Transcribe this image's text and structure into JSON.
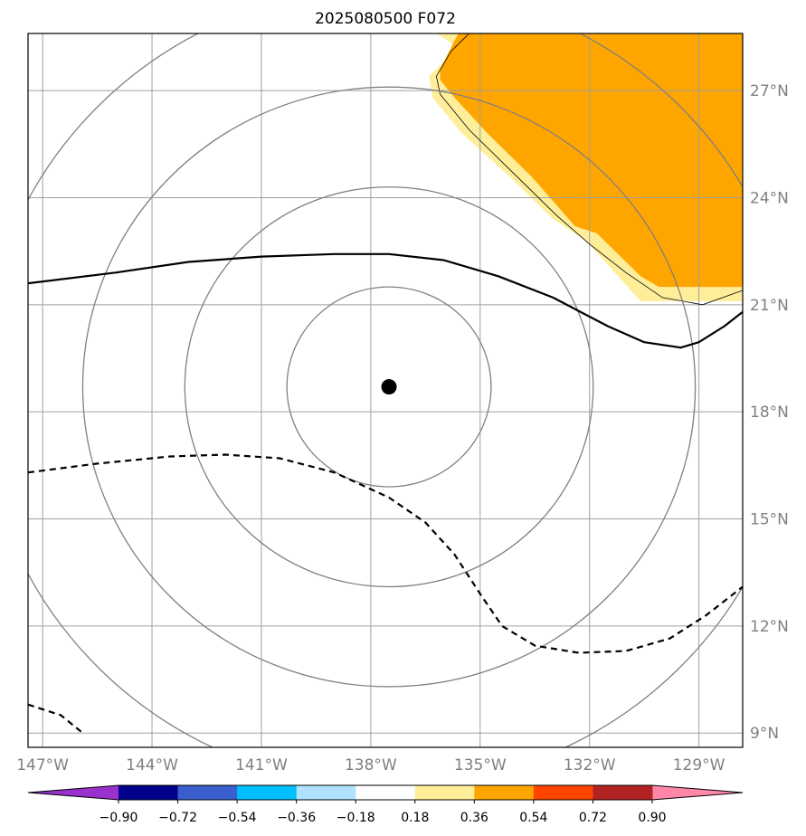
{
  "title": "2025080500 F072",
  "map": {
    "lon_range": [
      -147.4,
      -127.8
    ],
    "lat_range": [
      8.6,
      28.6
    ],
    "lat_ticks": [
      {
        "value": 27,
        "label": "27°N"
      },
      {
        "value": 24,
        "label": "24°N"
      },
      {
        "value": 21,
        "label": "21°N"
      },
      {
        "value": 18,
        "label": "18°N"
      },
      {
        "value": 15,
        "label": "15°N"
      },
      {
        "value": 12,
        "label": "12°N"
      },
      {
        "value": 9,
        "label": "9°N"
      }
    ],
    "lon_ticks": [
      {
        "value": -147,
        "label": "147°W"
      },
      {
        "value": -144,
        "label": "144°W"
      },
      {
        "value": -141,
        "label": "141°W"
      },
      {
        "value": -138,
        "label": "138°W"
      },
      {
        "value": -135,
        "label": "135°W"
      },
      {
        "value": -132,
        "label": "132°W"
      },
      {
        "value": -129,
        "label": "129°W"
      }
    ],
    "center": {
      "lon": -137.5,
      "lat": 18.7
    },
    "range_ring_radii_deg": [
      2.8,
      5.6,
      8.4,
      11.2
    ],
    "grid_color": "#a0a0a0",
    "ring_color": "#808080",
    "solid_contour": [
      [
        -147.4,
        21.6
      ],
      [
        -145,
        21.9
      ],
      [
        -143,
        22.2
      ],
      [
        -141,
        22.35
      ],
      [
        -139,
        22.42
      ],
      [
        -137.5,
        22.42
      ],
      [
        -136,
        22.25
      ],
      [
        -134.5,
        21.8
      ],
      [
        -133,
        21.2
      ],
      [
        -131.5,
        20.4
      ],
      [
        -130.5,
        19.95
      ],
      [
        -129.5,
        19.8
      ],
      [
        -129,
        19.95
      ],
      [
        -128.3,
        20.4
      ],
      [
        -127.8,
        20.8
      ]
    ],
    "dashed_contour_main": [
      [
        -147.4,
        16.3
      ],
      [
        -145.5,
        16.55
      ],
      [
        -143.5,
        16.75
      ],
      [
        -142,
        16.8
      ],
      [
        -140.5,
        16.7
      ],
      [
        -139,
        16.3
      ],
      [
        -137.5,
        15.6
      ],
      [
        -136.5,
        14.9
      ],
      [
        -135.7,
        14.0
      ],
      [
        -135,
        12.9
      ],
      [
        -134.4,
        12.0
      ],
      [
        -133.5,
        11.45
      ],
      [
        -132.3,
        11.25
      ],
      [
        -131,
        11.3
      ],
      [
        -129.8,
        11.65
      ],
      [
        -128.8,
        12.3
      ],
      [
        -127.8,
        13.1
      ]
    ],
    "dashed_contour_corner": [
      [
        -147.4,
        9.8
      ],
      [
        -146.5,
        9.5
      ],
      [
        -145.9,
        9.0
      ]
    ],
    "anomaly_regions": [
      {
        "level": "0.18-0.36",
        "color": "#ffee99",
        "polygon": [
          [
            -136.2,
            28.6
          ],
          [
            -127.8,
            28.6
          ],
          [
            -127.8,
            21.1
          ],
          [
            -129.3,
            21.1
          ],
          [
            -130.6,
            21.1
          ],
          [
            -132.1,
            22.8
          ],
          [
            -133,
            23.4
          ],
          [
            -134.2,
            24.6
          ],
          [
            -135.5,
            25.8
          ],
          [
            -136.3,
            26.8
          ],
          [
            -136.4,
            27.4
          ],
          [
            -135.6,
            28.2
          ]
        ]
      },
      {
        "level": "0.36-0.54",
        "color": "#ffa500",
        "polygon": [
          [
            -135.6,
            28.6
          ],
          [
            -127.8,
            28.6
          ],
          [
            -127.8,
            21.5
          ],
          [
            -130.1,
            21.5
          ],
          [
            -130.6,
            21.8
          ],
          [
            -131.8,
            23.0
          ],
          [
            -132.4,
            23.2
          ],
          [
            -133.6,
            24.6
          ],
          [
            -134.8,
            25.8
          ],
          [
            -135.7,
            26.8
          ],
          [
            -136.1,
            27.3
          ],
          [
            -136.1,
            27.6
          ]
        ]
      }
    ],
    "land_outline": [
      [
        -135.3,
        28.6
      ],
      [
        -135.8,
        28.1
      ],
      [
        -136.2,
        27.4
      ],
      [
        -136.1,
        26.9
      ],
      [
        -135.3,
        25.9
      ],
      [
        -134.0,
        24.6
      ],
      [
        -132.9,
        23.5
      ],
      [
        -132.0,
        22.7
      ],
      [
        -131.0,
        21.9
      ],
      [
        -130.0,
        21.2
      ],
      [
        -128.9,
        21.0
      ],
      [
        -127.8,
        21.4
      ]
    ]
  },
  "colorbar": {
    "boundaries": [
      -0.9,
      -0.72,
      -0.54,
      -0.36,
      -0.18,
      0.18,
      0.36,
      0.54,
      0.72,
      0.9
    ],
    "labels": [
      "−0.90",
      "−0.72",
      "−0.54",
      "−0.36",
      "−0.18",
      "0.18",
      "0.36",
      "0.54",
      "0.72",
      "0.90"
    ],
    "under_color": "#9932cc",
    "over_color": "#ff88aa",
    "colors": [
      "#00008b",
      "#3a5fcd",
      "#00bfff",
      "#b0e2ff",
      "#ffffff",
      "#ffee99",
      "#ffa500",
      "#ff4500",
      "#b22222"
    ]
  }
}
